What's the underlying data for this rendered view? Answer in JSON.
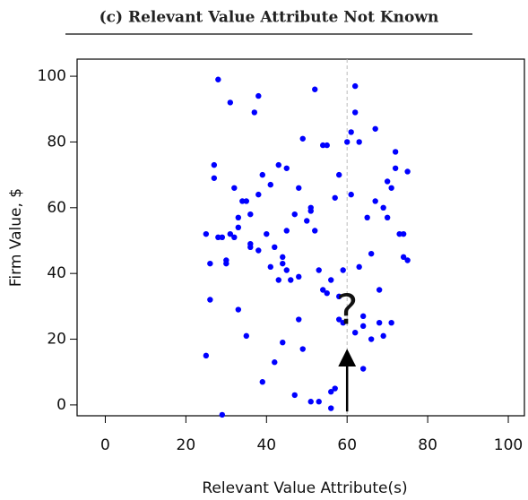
{
  "chart_data": {
    "type": "scatter",
    "title": "(c) Relevant Value Attribute Not Known",
    "x_label": "Relevant Value Attribute(s)",
    "y_label": "Firm Value, $",
    "series": [
      {
        "color": "#0000ff",
        "x": [
          28,
          31,
          38,
          37,
          52,
          62,
          62,
          49,
          54,
          55,
          60,
          61,
          63,
          67,
          72,
          72,
          27,
          27,
          32,
          34,
          35,
          33,
          36,
          38,
          39,
          41,
          43,
          45,
          48,
          47,
          50,
          51,
          51,
          52,
          57,
          58,
          61,
          65,
          67,
          69,
          70,
          71,
          70,
          74,
          73,
          75,
          74,
          75,
          25,
          26,
          28,
          29,
          30,
          30,
          31,
          32,
          33,
          36,
          36,
          38,
          40,
          41,
          42,
          44,
          44,
          45,
          43,
          46,
          45,
          48,
          53,
          54,
          55,
          56,
          58,
          58,
          59,
          59,
          63,
          66,
          68,
          64,
          64,
          66,
          68,
          69,
          71,
          62,
          26,
          33,
          35,
          25,
          42,
          44,
          48,
          49,
          39,
          47,
          51,
          53,
          56,
          56,
          57,
          64,
          29
        ],
        "values": [
          99,
          92,
          94,
          89,
          96,
          97,
          89,
          81,
          79,
          79,
          80,
          83,
          80,
          84,
          77,
          72,
          73,
          69,
          66,
          62,
          62,
          57,
          58,
          64,
          70,
          67,
          73,
          72,
          66,
          58,
          56,
          60,
          59,
          53,
          63,
          70,
          64,
          57,
          62,
          60,
          68,
          66,
          57,
          52,
          52,
          71,
          45,
          44,
          52,
          43,
          51,
          51,
          44,
          43,
          52,
          51,
          54,
          49,
          48,
          47,
          52,
          42,
          48,
          45,
          43,
          41,
          38,
          38,
          53,
          39,
          41,
          35,
          34,
          38,
          33,
          26,
          41,
          25,
          42,
          46,
          35,
          27,
          24,
          20,
          25,
          21,
          25,
          22,
          32,
          29,
          21,
          15,
          13,
          19,
          26,
          17,
          7,
          3,
          1,
          1,
          4,
          -1,
          5,
          11,
          -3
        ]
      }
    ],
    "xlim": [
      -7,
      104
    ],
    "ylim": [
      -3.3,
      105.2
    ],
    "xticks": [
      0,
      20,
      40,
      60,
      80,
      100
    ],
    "yticks": [
      0,
      20,
      40,
      60,
      80,
      100
    ],
    "reference_line": {
      "x": 60,
      "color": "#bbbbbb"
    },
    "arrow": {
      "x": 60,
      "y_from": -2,
      "y_to": 16
    },
    "annotation": {
      "text": "?",
      "x": 60,
      "y": 28
    }
  }
}
